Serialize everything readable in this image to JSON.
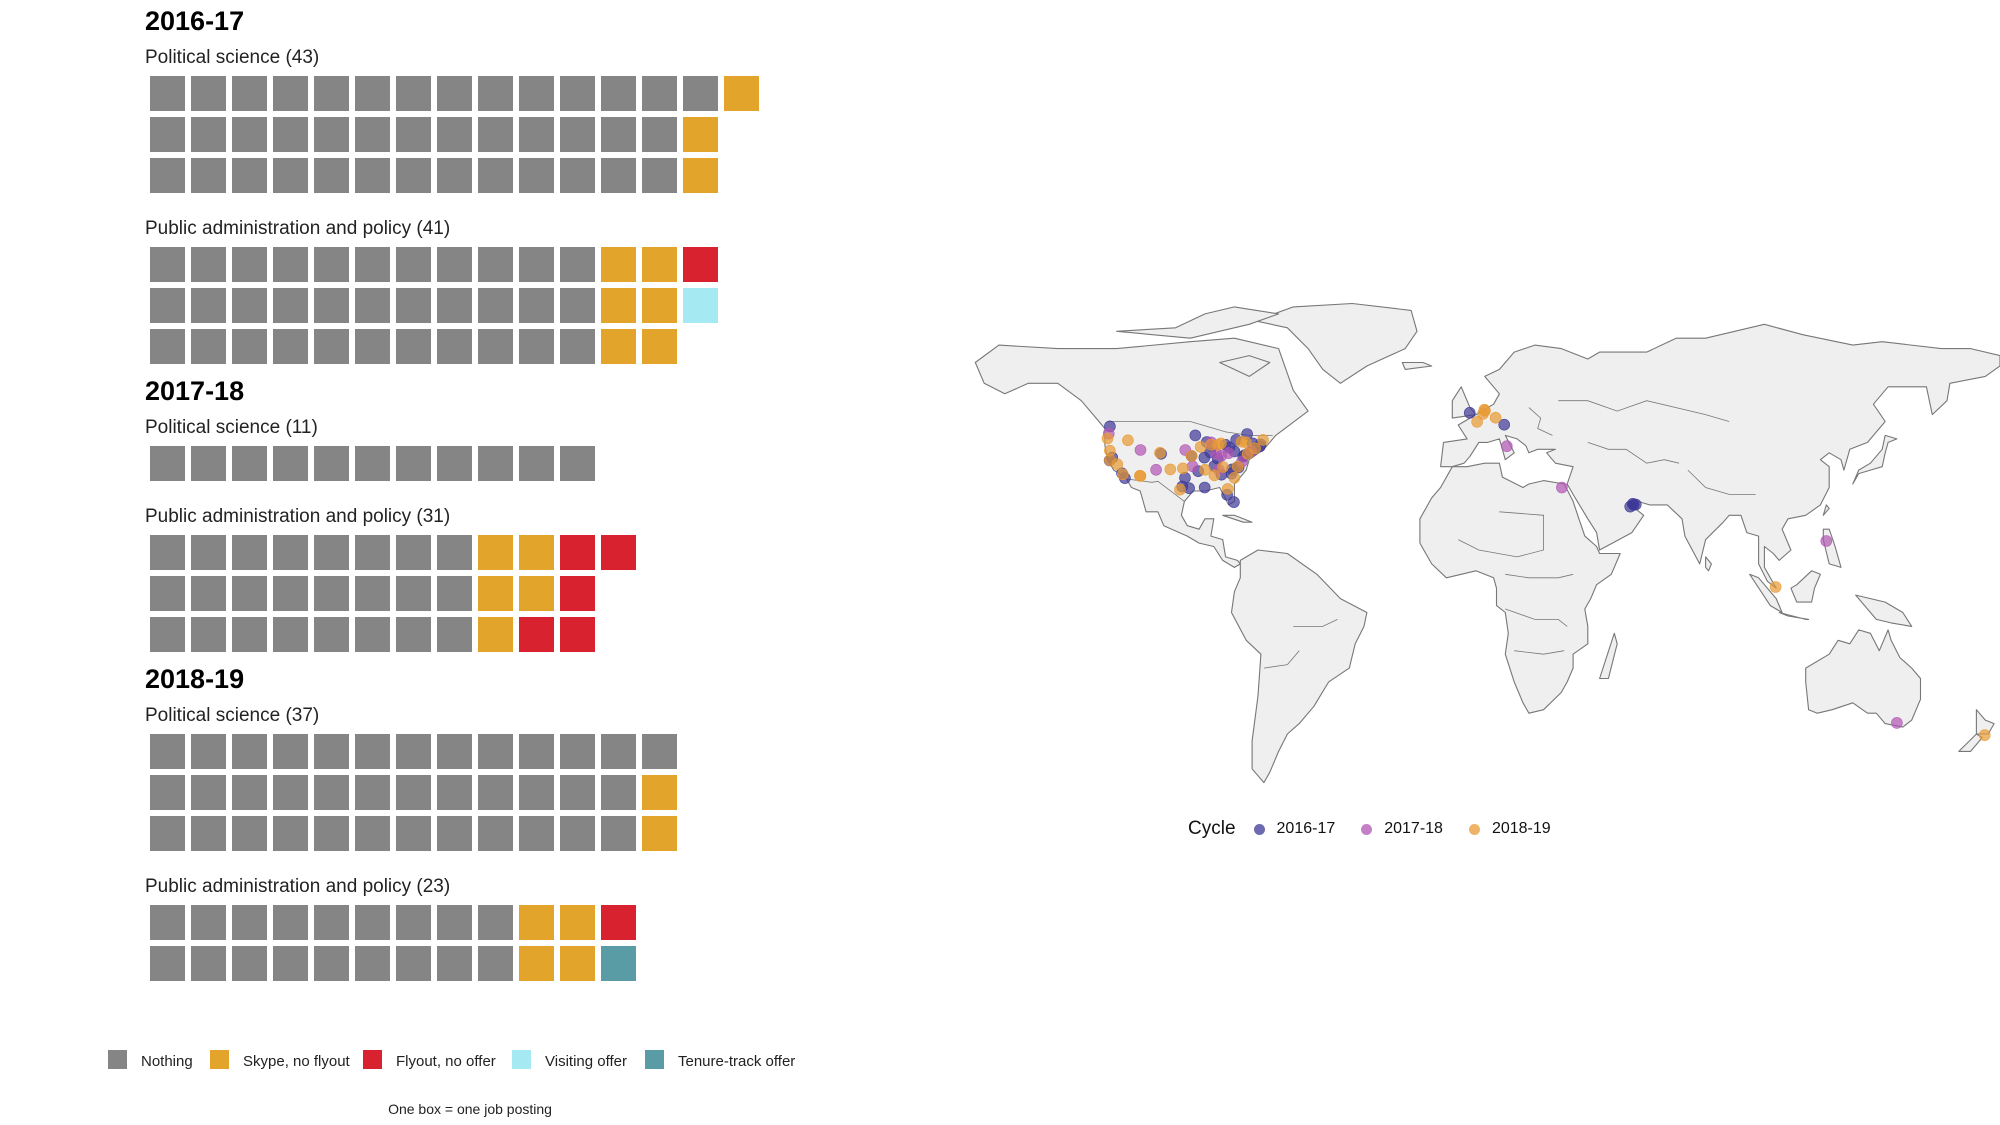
{
  "colors": {
    "Nothing": "#858585",
    "Skype, no flyout": "#E3A42B",
    "Flyout, no offer": "#D8222F",
    "Visiting offer": "#A5E9F2",
    "Tenure-track offer": "#5A9CA5",
    "map_land": "#EFEFEF",
    "map_border": "#777777",
    "cycle_2016_17": "#3D3896",
    "cycle_2017_18": "#B056B3",
    "cycle_2018_19": "#E89A33"
  },
  "chart_data": [
    {
      "type": "waffle",
      "note": "One box = one job posting",
      "categories": [
        "Nothing",
        "Skype, no flyout",
        "Flyout, no offer",
        "Visiting offer",
        "Tenure-track offer"
      ],
      "panels": [
        {
          "cycle": "2016-17",
          "groups": [
            {
              "label": "Political science (43)",
              "counts": [
                40,
                3,
                0,
                0,
                0
              ]
            },
            {
              "label": "Public administration and policy (41)",
              "counts": [
                33,
                6,
                1,
                1,
                0
              ]
            }
          ]
        },
        {
          "cycle": "2017-18",
          "groups": [
            {
              "label": "Political science (11)",
              "counts": [
                11,
                0,
                0,
                0,
                0
              ]
            },
            {
              "label": "Public administration and policy (31)",
              "counts": [
                24,
                5,
                5,
                0,
                0
              ]
            }
          ]
        },
        {
          "cycle": "2018-19",
          "groups": [
            {
              "label": "Political science (37)",
              "counts": [
                37,
                2,
                0,
                0,
                0
              ]
            },
            {
              "label": "Public administration and policy (23)",
              "counts": [
                18,
                4,
                1,
                0,
                1
              ]
            }
          ]
        }
      ]
    },
    {
      "type": "scatter",
      "map": "world",
      "legend_title": "Cycle",
      "series": [
        {
          "name": "2016-17",
          "points": [
            [
              -122.3,
              47.6
            ],
            [
              -122.4,
              37.8
            ],
            [
              -118.2,
              34.1
            ],
            [
              -117.2,
              32.7
            ],
            [
              -121.5,
              38.6
            ],
            [
              -104.9,
              39.7
            ],
            [
              -96.8,
              32.8
            ],
            [
              -95.4,
              29.8
            ],
            [
              -97.7,
              30.3
            ],
            [
              -90.2,
              38.6
            ],
            [
              -87.6,
              41.9
            ],
            [
              -83.0,
              42.3
            ],
            [
              -84.4,
              33.7
            ],
            [
              -86.8,
              36.2
            ],
            [
              -81.7,
              41.5
            ],
            [
              -80.0,
              40.4
            ],
            [
              -77.0,
              38.9
            ],
            [
              -76.6,
              39.3
            ],
            [
              -75.2,
              39.9
            ],
            [
              -74.0,
              40.7
            ],
            [
              -71.1,
              42.4
            ],
            [
              -73.8,
              42.7
            ],
            [
              -78.6,
              35.8
            ],
            [
              -79.0,
              35.9
            ],
            [
              -80.8,
              35.2
            ],
            [
              -81.0,
              34.0
            ],
            [
              -88.2,
              40.1
            ],
            [
              -93.3,
              45.0
            ],
            [
              -92.3,
              34.7
            ],
            [
              -90.1,
              30.0
            ],
            [
              -82.5,
              27.9
            ],
            [
              -80.2,
              25.8
            ],
            [
              -71.4,
              41.8
            ],
            [
              -72.9,
              41.3
            ],
            [
              -75.7,
              45.4
            ],
            [
              -79.4,
              43.7
            ],
            [
              -85.7,
              38.3
            ],
            [
              -89.4,
              43.1
            ],
            [
              -94.6,
              39.1
            ],
            [
              11.6,
              48.1
            ],
            [
              -0.1,
              51.5
            ],
            [
              55.3,
              25.3
            ],
            [
              54.4,
              24.5
            ],
            [
              56.3,
              25.1
            ],
            [
              55.6,
              25.0
            ]
          ]
        },
        {
          "name": "2017-18",
          "points": [
            [
              -122.7,
              45.5
            ],
            [
              -111.9,
              40.8
            ],
            [
              -106.6,
              35.1
            ],
            [
              -87.9,
              43.0
            ],
            [
              -85.3,
              35.1
            ],
            [
              -77.4,
              37.5
            ],
            [
              -74.4,
              40.5
            ],
            [
              -84.5,
              39.1
            ],
            [
              -96.7,
              40.8
            ],
            [
              -94.2,
              36.1
            ],
            [
              12.5,
              41.9
            ],
            [
              31.2,
              30.0
            ],
            [
              121.0,
              14.6
            ],
            [
              145.0,
              -37.8
            ],
            [
              -82.0,
              39.9
            ],
            [
              -86.2,
              39.8
            ]
          ]
        },
        {
          "name": "2018-19",
          "points": [
            [
              -123.1,
              44.1
            ],
            [
              -119.8,
              36.7
            ],
            [
              -112.1,
              33.4
            ],
            [
              -105.3,
              40.0
            ],
            [
              -98.5,
              29.4
            ],
            [
              -94.6,
              39.1
            ],
            [
              -90.0,
              35.1
            ],
            [
              -86.8,
              33.5
            ],
            [
              -83.9,
              35.9
            ],
            [
              -82.3,
              29.6
            ],
            [
              -80.0,
              32.8
            ],
            [
              -78.9,
              36.0
            ],
            [
              -77.6,
              43.2
            ],
            [
              -76.1,
              43.0
            ],
            [
              -73.0,
              41.3
            ],
            [
              -70.3,
              43.7
            ],
            [
              -84.6,
              42.7
            ],
            [
              -85.6,
              42.3
            ],
            [
              -88.0,
              42.3
            ],
            [
              -91.5,
              41.7
            ],
            [
              -97.5,
              35.5
            ],
            [
              -101.8,
              35.2
            ],
            [
              -116.2,
              43.6
            ],
            [
              -122.3,
              40.6
            ],
            [
              -111.9,
              33.3
            ],
            [
              4.9,
              52.4
            ],
            [
              2.4,
              48.9
            ],
            [
              5.1,
              52.1
            ],
            [
              8.7,
              50.1
            ],
            [
              4.4,
              51.2
            ],
            [
              103.8,
              1.35
            ],
            [
              174.8,
              -41.3
            ],
            [
              -122.3,
              37.9
            ],
            [
              -117.9,
              33.8
            ],
            [
              -75.5,
              39.7
            ]
          ]
        }
      ]
    }
  ]
}
